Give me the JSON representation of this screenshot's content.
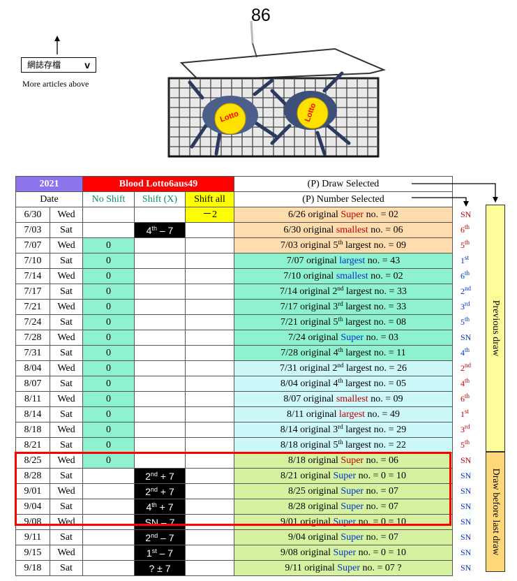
{
  "page_number": "86",
  "archive": {
    "label": "網誌存檔",
    "chevron": "v",
    "more": "More articles above"
  },
  "crab_logos": [
    "Lotto",
    "Lotto"
  ],
  "header": {
    "year": "2021",
    "title": "Blood Lotto6aus49",
    "p_draw": "(P) Draw Selected",
    "date": "Date",
    "no_shift": "No Shift",
    "shift_x": "Shift (X)",
    "shift_all": "Shift all",
    "p_number": "(P) Number Selected"
  },
  "side_labels": {
    "previous": "Previous draw",
    "before_last": "Draw before last draw"
  },
  "colors": {
    "year_bg": "#8d73ee",
    "title_bg": "#ff0000",
    "zero_bg": "#8ff2cf",
    "highlight_box": "#ff0000"
  },
  "rows": [
    {
      "date": "6/30",
      "day": "Wed",
      "no_shift": "",
      "shift_x": "",
      "shift_all": "－2",
      "desc": "6/26 original ",
      "rank": "Super",
      "rank_color": "red",
      "suffix": " no. = 02",
      "tag": "SN",
      "tag_color": "red",
      "bg": "orange"
    },
    {
      "date": "7/03",
      "day": "Sat",
      "no_shift": "",
      "shift_x": "4th – 7",
      "shift_all": "",
      "desc": "6/30 original ",
      "rank": "smallest",
      "rank_color": "red",
      "suffix": " no. = 06",
      "tag": "6th",
      "tag_color": "red",
      "bg": "orange"
    },
    {
      "date": "7/07",
      "day": "Wed",
      "no_shift": "0",
      "shift_x": "",
      "shift_all": "",
      "desc": "7/03 original 5th ",
      "rank": "largest",
      "rank_color": "black",
      "suffix": " no. = 09",
      "tag": "5th",
      "tag_color": "red",
      "bg": "orange"
    },
    {
      "date": "7/10",
      "day": "Sat",
      "no_shift": "0",
      "shift_x": "",
      "shift_all": "",
      "desc": "7/07 original ",
      "rank": "largest",
      "rank_color": "blue",
      "suffix": " no. = 43",
      "tag": "1st",
      "tag_color": "blue",
      "bg": "teal"
    },
    {
      "date": "7/14",
      "day": "Wed",
      "no_shift": "0",
      "shift_x": "",
      "shift_all": "",
      "desc": "7/10 original ",
      "rank": "smallest",
      "rank_color": "blue",
      "suffix": " no. = 02",
      "tag": "6th",
      "tag_color": "blue",
      "bg": "teal"
    },
    {
      "date": "7/17",
      "day": "Sat",
      "no_shift": "0",
      "shift_x": "",
      "shift_all": "",
      "desc": "7/14 original 2nd ",
      "rank": "largest",
      "rank_color": "black",
      "suffix": " no. = 33",
      "tag": "2nd",
      "tag_color": "blue",
      "bg": "teal"
    },
    {
      "date": "7/21",
      "day": "Wed",
      "no_shift": "0",
      "shift_x": "",
      "shift_all": "",
      "desc": "7/17 original 3rd ",
      "rank": "largest",
      "rank_color": "black",
      "suffix": " no. = 33",
      "tag": "3rd",
      "tag_color": "blue",
      "bg": "teal"
    },
    {
      "date": "7/24",
      "day": "Sat",
      "no_shift": "0",
      "shift_x": "",
      "shift_all": "",
      "desc": "7/21 original 5th ",
      "rank": "largest",
      "rank_color": "black",
      "suffix": " no. = 08",
      "tag": "5th",
      "tag_color": "blue",
      "bg": "teal"
    },
    {
      "date": "7/28",
      "day": "Wed",
      "no_shift": "0",
      "shift_x": "",
      "shift_all": "",
      "desc": "7/24 original ",
      "rank": "Super",
      "rank_color": "blue",
      "suffix": " no. = 03",
      "tag": "SN",
      "tag_color": "blue",
      "bg": "teal"
    },
    {
      "date": "7/31",
      "day": "Sat",
      "no_shift": "0",
      "shift_x": "",
      "shift_all": "",
      "desc": "7/28 original 4th ",
      "rank": "largest",
      "rank_color": "black",
      "suffix": " no. = 11",
      "tag": "4th",
      "tag_color": "blue",
      "bg": "teal"
    },
    {
      "date": "8/04",
      "day": "Wed",
      "no_shift": "0",
      "shift_x": "",
      "shift_all": "",
      "desc": "7/31 original 2nd ",
      "rank": "largest",
      "rank_color": "black",
      "suffix": " no. = 26",
      "tag": "2nd",
      "tag_color": "red",
      "bg": "lcyan"
    },
    {
      "date": "8/07",
      "day": "Sat",
      "no_shift": "0",
      "shift_x": "",
      "shift_all": "",
      "desc": "8/04 original 4th ",
      "rank": "largest",
      "rank_color": "black",
      "suffix": " no. = 05",
      "tag": "4th",
      "tag_color": "red",
      "bg": "lcyan"
    },
    {
      "date": "8/11",
      "day": "Wed",
      "no_shift": "0",
      "shift_x": "",
      "shift_all": "",
      "desc": "8/07 original ",
      "rank": "smallest",
      "rank_color": "red",
      "suffix": " no. = 09",
      "tag": "6th",
      "tag_color": "red",
      "bg": "lcyan"
    },
    {
      "date": "8/14",
      "day": "Sat",
      "no_shift": "0",
      "shift_x": "",
      "shift_all": "",
      "desc": "8/11 original ",
      "rank": "largest",
      "rank_color": "red",
      "suffix": " no. = 49",
      "tag": "1st",
      "tag_color": "red",
      "bg": "lcyan"
    },
    {
      "date": "8/18",
      "day": "Wed",
      "no_shift": "0",
      "shift_x": "",
      "shift_all": "",
      "desc": "8/14 original 3rd ",
      "rank": "largest",
      "rank_color": "black",
      "suffix": " no. = 29",
      "tag": "3rd",
      "tag_color": "red",
      "bg": "lcyan"
    },
    {
      "date": "8/21",
      "day": "Sat",
      "no_shift": "0",
      "shift_x": "",
      "shift_all": "",
      "desc": "8/18 original 5th ",
      "rank": "largest",
      "rank_color": "black",
      "suffix": " no. = 22",
      "tag": "5th",
      "tag_color": "red",
      "bg": "lcyan"
    },
    {
      "date": "8/25",
      "day": "Wed",
      "no_shift": "0",
      "shift_x": "",
      "shift_all": "",
      "desc": "8/18 original ",
      "rank": "Super",
      "rank_color": "red",
      "suffix": " no. = 06",
      "tag": "SN",
      "tag_color": "red",
      "bg": "lgreen"
    },
    {
      "date": "8/28",
      "day": "Sat",
      "no_shift": "",
      "shift_x": "2nd + 7",
      "shift_all": "",
      "desc": "8/21 original ",
      "rank": "Super",
      "rank_color": "blue",
      "suffix": " no. = 0 = 10",
      "tag": "SN",
      "tag_color": "blue",
      "bg": "lgreen"
    },
    {
      "date": "9/01",
      "day": "Wed",
      "no_shift": "",
      "shift_x": "2nd + 7",
      "shift_all": "",
      "desc": "8/25 original ",
      "rank": "Super",
      "rank_color": "blue",
      "suffix": " no. = 07",
      "tag": "SN",
      "tag_color": "blue",
      "bg": "lgreen"
    },
    {
      "date": "9/04",
      "day": "Sat",
      "no_shift": "",
      "shift_x": "4th + 7",
      "shift_all": "",
      "desc": "8/28 original ",
      "rank": "Super",
      "rank_color": "blue",
      "suffix": " no. = 07",
      "tag": "SN",
      "tag_color": "blue",
      "bg": "lgreen"
    },
    {
      "date": "9/08",
      "day": "Wed",
      "no_shift": "",
      "shift_x": "SN – 7",
      "shift_all": "",
      "desc": "9/01 original ",
      "rank": "Super",
      "rank_color": "blue",
      "suffix": " no. = 0 = 10",
      "tag": "SN",
      "tag_color": "blue",
      "bg": "lgreen"
    },
    {
      "date": "9/11",
      "day": "Sat",
      "no_shift": "",
      "shift_x": "2nd – 7",
      "shift_all": "",
      "desc": "9/04 original ",
      "rank": "Super",
      "rank_color": "blue",
      "suffix": " no. = 07",
      "tag": "SN",
      "tag_color": "blue",
      "bg": "lgreen"
    },
    {
      "date": "9/15",
      "day": "Wed",
      "no_shift": "",
      "shift_x": "1st – 7",
      "shift_all": "",
      "desc": "9/08 original ",
      "rank": "Super",
      "rank_color": "blue",
      "suffix": " no. = 0 = 10",
      "tag": "SN",
      "tag_color": "blue",
      "bg": "lgreen"
    },
    {
      "date": "9/18",
      "day": "Sat",
      "no_shift": "",
      "shift_x": "? ± 7",
      "shift_all": "",
      "desc": "9/11 original ",
      "rank": "Super",
      "rank_color": "blue",
      "suffix": " no. = 07 ?",
      "tag": "SN",
      "tag_color": "blue",
      "bg": "lgreen"
    }
  ]
}
